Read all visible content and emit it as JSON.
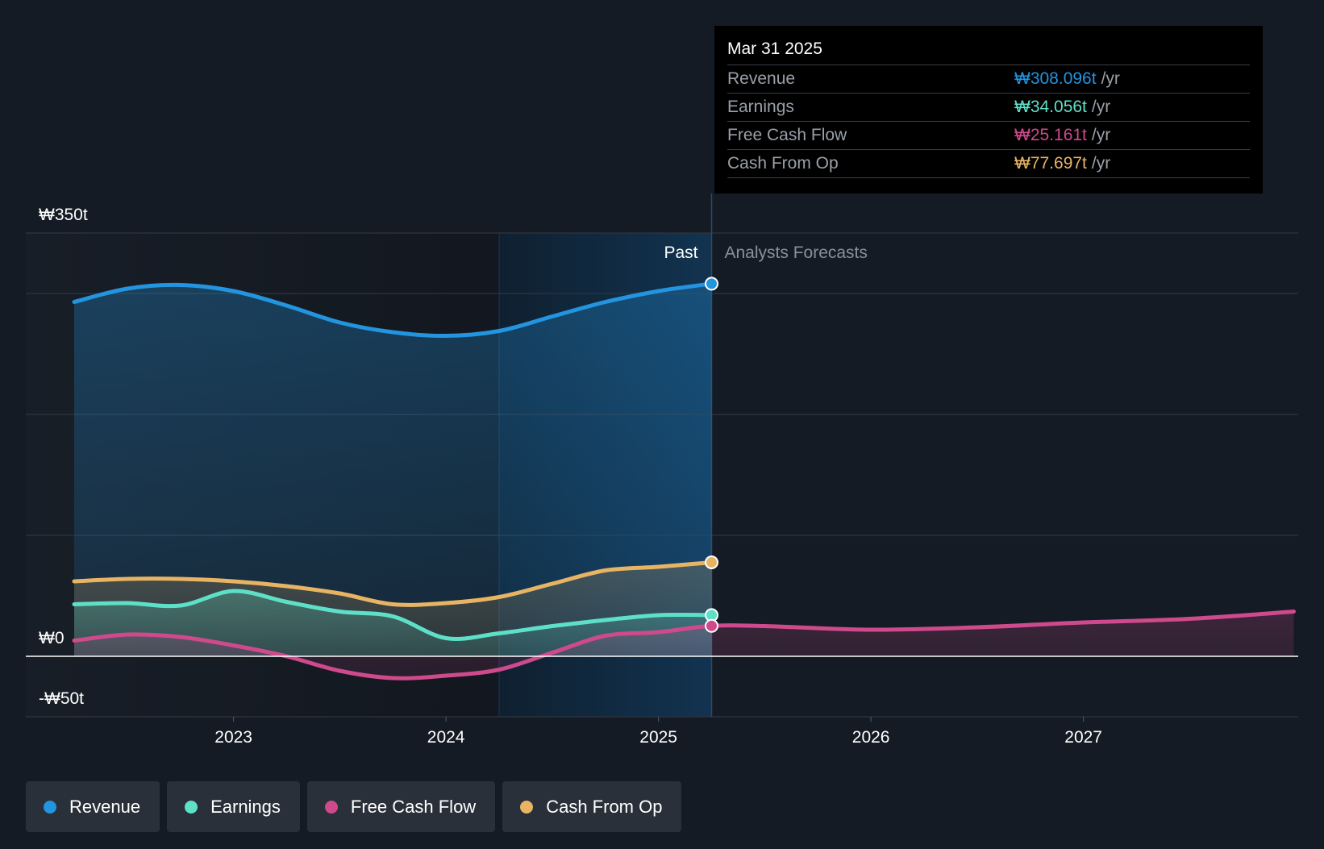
{
  "chart_data": {
    "type": "area",
    "x_ticks": [
      "2023",
      "2024",
      "2025",
      "2026",
      "2027"
    ],
    "x_tick_values": [
      2023,
      2024,
      2025,
      2026,
      2027
    ],
    "xlim": [
      2022.0,
      2027.99
    ],
    "ylim": [
      -50,
      350
    ],
    "y_labels": [
      {
        "value": 350,
        "label": "₩350t"
      },
      {
        "value": 0,
        "label": "₩0"
      },
      {
        "value": -50,
        "label": "-₩50t"
      }
    ],
    "gridlines": [
      350,
      300,
      200,
      100,
      -50
    ],
    "past_label": "Past",
    "forecast_label": "Analysts Forecasts",
    "past_end": 2025.25,
    "highlight_start": 2024.25,
    "series": [
      {
        "name": "Revenue",
        "color": "#2394df",
        "fill": true,
        "x": [
          2022.25,
          2022.5,
          2022.75,
          2023.0,
          2023.25,
          2023.5,
          2023.75,
          2024.0,
          2024.25,
          2024.5,
          2024.75,
          2025.0,
          2025.25
        ],
        "values": [
          293,
          304,
          307,
          302,
          290,
          276,
          268,
          265,
          269,
          281,
          293,
          302,
          308.096
        ]
      },
      {
        "name": "Cash From Op",
        "color": "#e8b464",
        "fill": true,
        "x": [
          2022.25,
          2022.5,
          2022.75,
          2023.0,
          2023.25,
          2023.5,
          2023.75,
          2024.0,
          2024.25,
          2024.5,
          2024.75,
          2025.0,
          2025.25
        ],
        "values": [
          62,
          64,
          64,
          62,
          58,
          52,
          43,
          44,
          49,
          60,
          71,
          74,
          77.697
        ]
      },
      {
        "name": "Earnings",
        "color": "#5ee0c8",
        "fill": true,
        "x": [
          2022.25,
          2022.5,
          2022.75,
          2023.0,
          2023.25,
          2023.5,
          2023.75,
          2024.0,
          2024.25,
          2024.5,
          2024.75,
          2025.0,
          2025.25
        ],
        "values": [
          43,
          44,
          42,
          54,
          45,
          37,
          33,
          15,
          19,
          25,
          30,
          34,
          34.056
        ]
      },
      {
        "name": "Free Cash Flow",
        "color": "#cf4a8c",
        "fill": true,
        "x": [
          2022.25,
          2022.5,
          2022.75,
          2023.0,
          2023.25,
          2023.5,
          2023.75,
          2024.0,
          2024.25,
          2024.5,
          2024.75,
          2025.0,
          2025.25,
          2025.5,
          2026.0,
          2026.5,
          2027.0,
          2027.5,
          2027.99
        ],
        "values": [
          13,
          18,
          16,
          9,
          0,
          -12,
          -18,
          -16,
          -11,
          3,
          17,
          20,
          25.161,
          25,
          22,
          24,
          28,
          31,
          37
        ]
      }
    ]
  },
  "tooltip": {
    "date": "Mar 31 2025",
    "rows": [
      {
        "label": "Revenue",
        "value": "₩308.096t",
        "unit": "/yr",
        "color": "#2394df"
      },
      {
        "label": "Earnings",
        "value": "₩34.056t",
        "unit": "/yr",
        "color": "#5ee0c8"
      },
      {
        "label": "Free Cash Flow",
        "value": "₩25.161t",
        "unit": "/yr",
        "color": "#cf4a8c"
      },
      {
        "label": "Cash From Op",
        "value": "₩77.697t",
        "unit": "/yr",
        "color": "#e8b464"
      }
    ]
  },
  "legend": [
    {
      "label": "Revenue",
      "color": "#2394df"
    },
    {
      "label": "Earnings",
      "color": "#5ee0c8"
    },
    {
      "label": "Free Cash Flow",
      "color": "#cf4a8c"
    },
    {
      "label": "Cash From Op",
      "color": "#e8b464"
    }
  ]
}
